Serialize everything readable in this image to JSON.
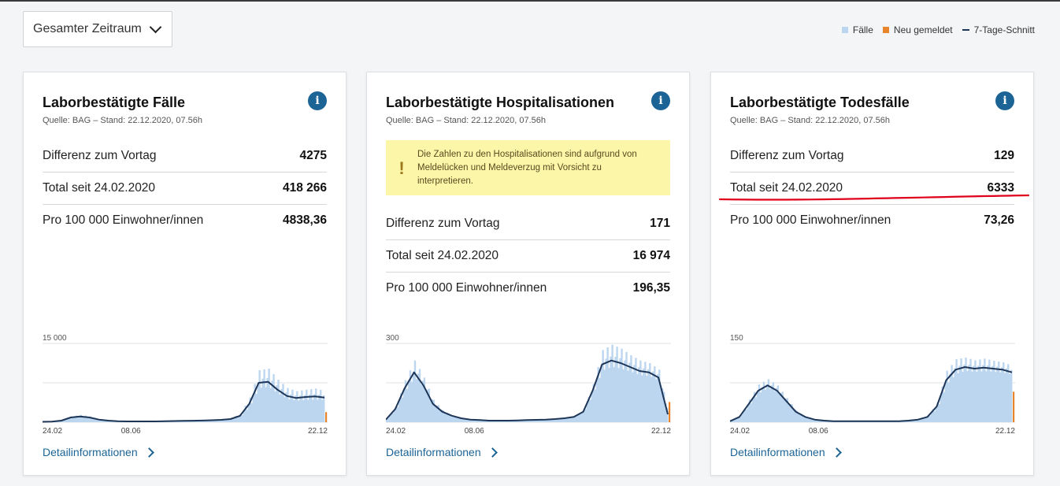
{
  "period_select": {
    "value": "Gesamter Zeitraum"
  },
  "legend": [
    {
      "label": "Fälle",
      "color": "#bcd6f0"
    },
    {
      "label": "Neu gemeldet",
      "color": "#e8852a"
    },
    {
      "label": "7-Tage-Schnitt",
      "color": "#1d3557"
    }
  ],
  "cards": [
    {
      "title": "Laborbestätigte Fälle",
      "source": "Quelle: BAG – Stand: 22.12.2020, 07.56h",
      "rows": [
        {
          "label": "Differenz zum Vortag",
          "value": "4275"
        },
        {
          "label": "Total seit 24.02.2020",
          "value": "418 266"
        },
        {
          "label": "Pro 100 000 Einwohner/innen",
          "value": "4838,36"
        }
      ],
      "chart_data": {
        "type": "area",
        "ymax_label": "15 000",
        "ylim": [
          0,
          15000
        ],
        "x_ticks": [
          "24.02",
          "08.06",
          "22.12"
        ],
        "avg": [
          80,
          120,
          300,
          900,
          1100,
          900,
          500,
          300,
          200,
          150,
          150,
          150,
          150,
          180,
          220,
          250,
          280,
          320,
          380,
          450,
          600,
          1200,
          3500,
          7500,
          7700,
          6200,
          5000,
          4600,
          4800,
          4900,
          4700
        ],
        "bar_extra": [
          0,
          0,
          0,
          200,
          300,
          200,
          100,
          0,
          0,
          0,
          0,
          0,
          0,
          0,
          0,
          0,
          0,
          0,
          0,
          0,
          200,
          400,
          1200,
          2400,
          2500,
          1900,
          1500,
          1300,
          1400,
          1500,
          1200
        ],
        "last_new": 4275
      },
      "link": "Detailinformationen"
    },
    {
      "title": "Laborbestätigte Hospitalisationen",
      "source": "Quelle: BAG – Stand: 22.12.2020, 07.56h",
      "warning": "Die Zahlen zu den Hospitalisationen sind aufgrund von Meldelücken und Meldeverzug mit Vorsicht zu interpretieren.",
      "rows": [
        {
          "label": "Differenz zum Vortag",
          "value": "171"
        },
        {
          "label": "Total seit 24.02.2020",
          "value": "16 974"
        },
        {
          "label": "Pro 100 000 Einwohner/innen",
          "value": "196,35"
        }
      ],
      "chart_data": {
        "type": "area",
        "ymax_label": "300",
        "ylim": [
          0,
          300
        ],
        "x_ticks": [
          "24.02",
          "08.06",
          "22.12"
        ],
        "avg": [
          10,
          50,
          130,
          190,
          140,
          70,
          40,
          25,
          15,
          10,
          8,
          6,
          6,
          6,
          7,
          8,
          9,
          10,
          12,
          15,
          20,
          40,
          120,
          220,
          235,
          225,
          210,
          195,
          190,
          170,
          30
        ],
        "bar_extra": [
          0,
          10,
          30,
          45,
          30,
          15,
          5,
          0,
          0,
          0,
          0,
          0,
          0,
          0,
          0,
          0,
          0,
          0,
          0,
          0,
          0,
          5,
          25,
          55,
          60,
          55,
          45,
          40,
          35,
          30,
          0
        ],
        "last_new": 171
      },
      "link": "Detailinformationen"
    },
    {
      "title": "Laborbestätigte Todesfälle",
      "source": "Quelle: BAG – Stand: 22.12.2020, 07.56h",
      "rows": [
        {
          "label": "Differenz zum Vortag",
          "value": "129"
        },
        {
          "label": "Total seit 24.02.2020",
          "value": "6333"
        },
        {
          "label": "Pro 100 000 Einwohner/innen",
          "value": "73,26"
        }
      ],
      "chart_data": {
        "type": "area",
        "ymax_label": "150",
        "ylim": [
          0,
          150
        ],
        "x_ticks": [
          "24.02",
          "08.06",
          "22.12"
        ],
        "avg": [
          2,
          10,
          35,
          60,
          70,
          60,
          40,
          20,
          10,
          5,
          3,
          2,
          2,
          2,
          2,
          2,
          2,
          2,
          2,
          3,
          5,
          10,
          30,
          80,
          100,
          105,
          102,
          104,
          102,
          100,
          95
        ],
        "bar_extra": [
          0,
          0,
          8,
          12,
          12,
          10,
          6,
          2,
          0,
          0,
          0,
          0,
          0,
          0,
          0,
          0,
          0,
          0,
          0,
          0,
          0,
          2,
          8,
          18,
          20,
          18,
          16,
          17,
          15,
          14,
          12
        ],
        "last_new": 129
      },
      "link": "Detailinformationen"
    }
  ],
  "highlight": {
    "color": "#e0001b"
  }
}
